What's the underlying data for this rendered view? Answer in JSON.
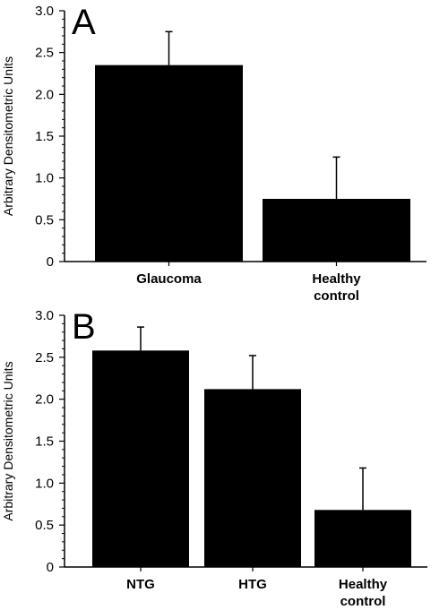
{
  "chart_data": [
    {
      "type": "bar",
      "panel_label": "A",
      "categories": [
        "Glaucoma",
        "Healthy\ncontrol"
      ],
      "values": [
        2.35,
        0.75
      ],
      "error_upper": [
        0.4,
        0.5
      ],
      "ylabel": "Arbitrary Densitometric Units",
      "ylim": [
        0,
        3.0
      ],
      "yticks": [
        "0",
        "0.5",
        "1.0",
        "1.5",
        "2.0",
        "2.5",
        "3.0"
      ],
      "bar_color": "#000000",
      "grid": false
    },
    {
      "type": "bar",
      "panel_label": "B",
      "categories": [
        "NTG",
        "HTG",
        "Healthy\ncontrol"
      ],
      "values": [
        2.58,
        2.12,
        0.68
      ],
      "error_upper": [
        0.28,
        0.4,
        0.5
      ],
      "ylabel": "Arbitrary Densitometric Units",
      "ylim": [
        0,
        3.0
      ],
      "yticks": [
        "0",
        "0.5",
        "1.0",
        "1.5",
        "2.0",
        "2.5",
        "3.0"
      ],
      "bar_color": "#000000",
      "grid": false
    }
  ]
}
